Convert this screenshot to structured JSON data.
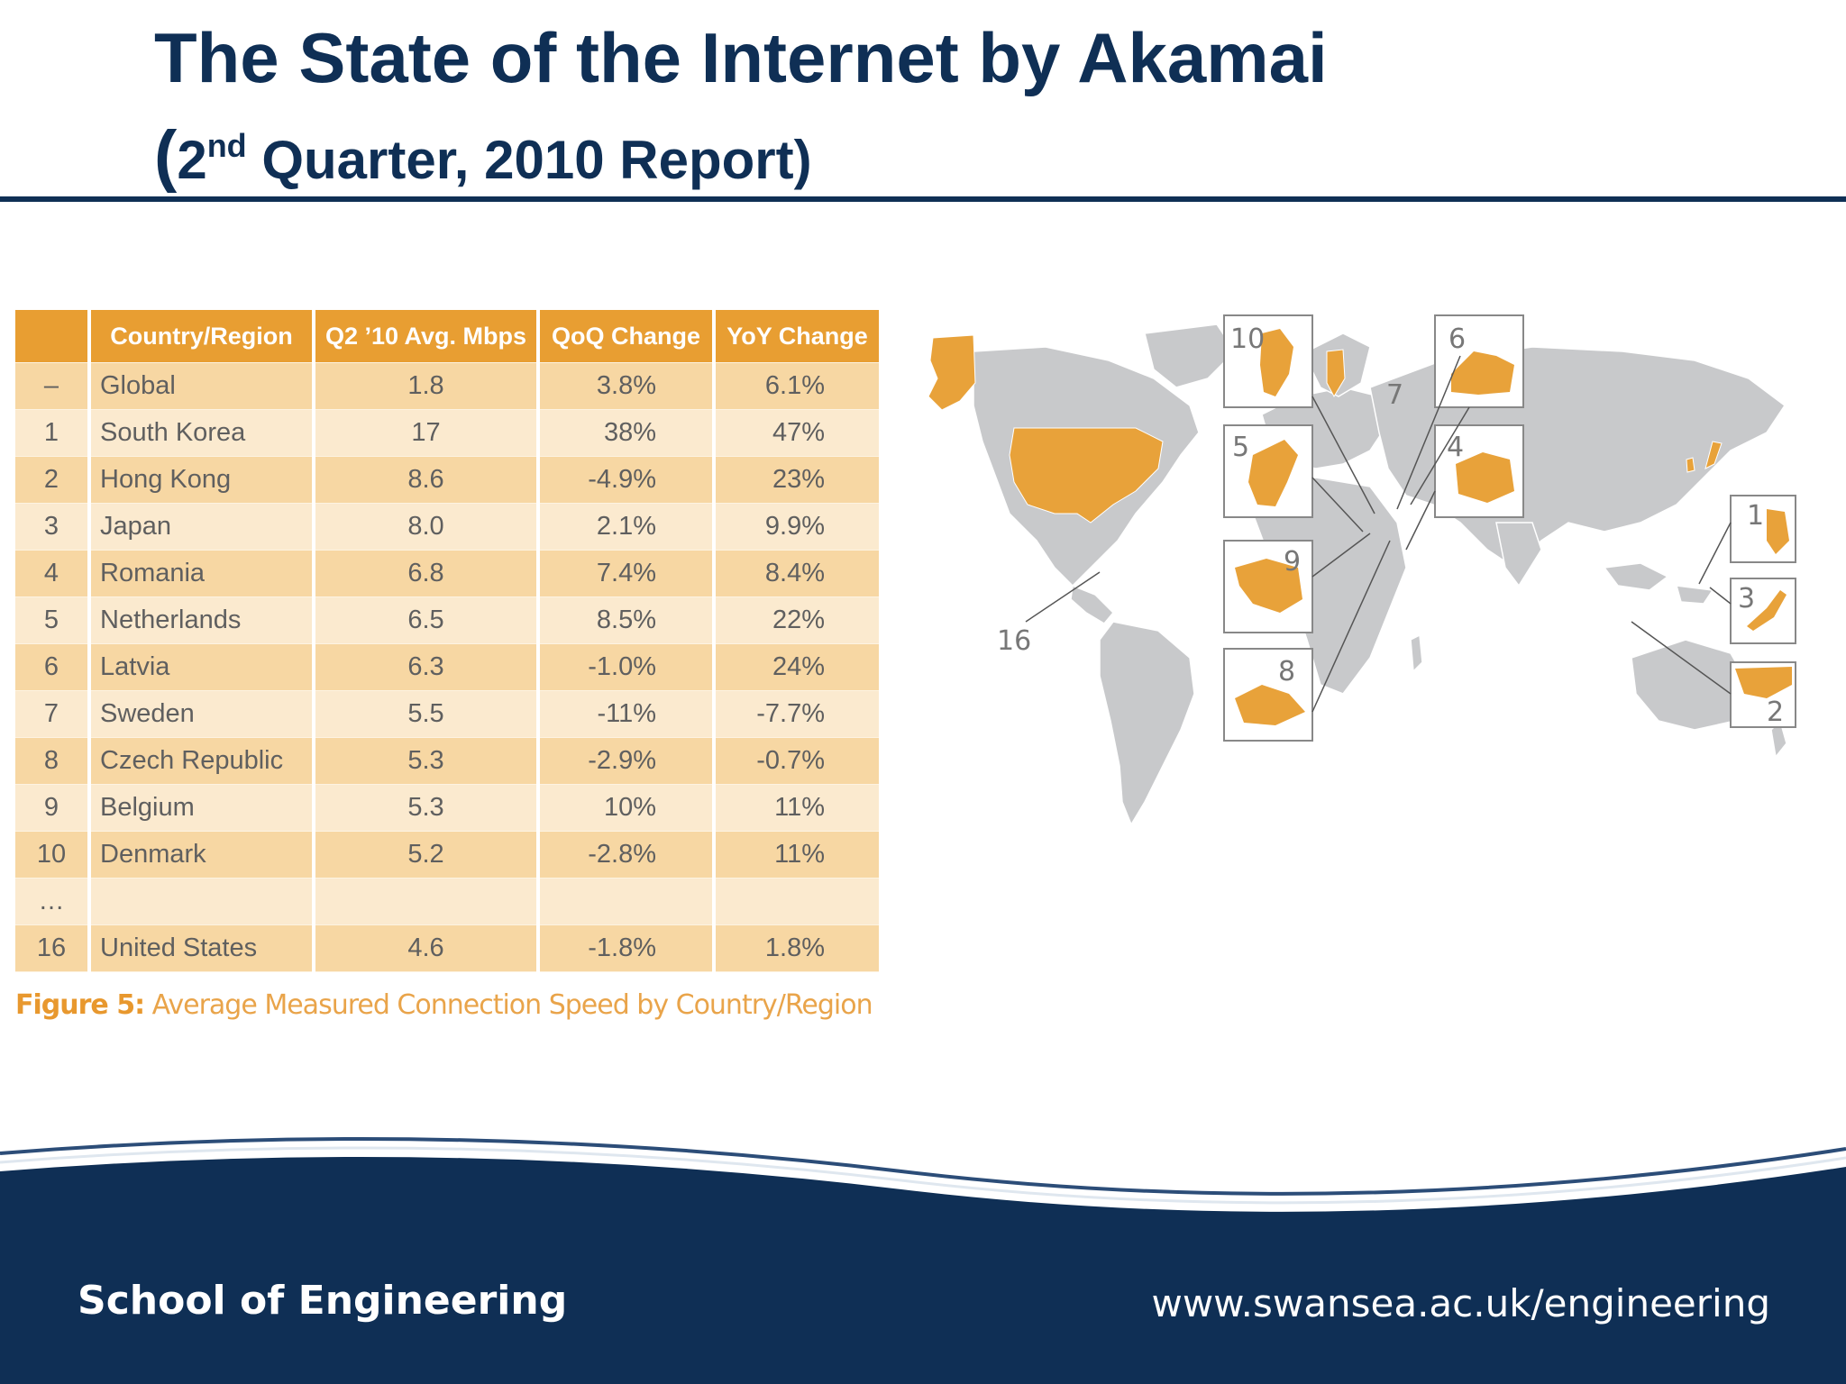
{
  "slide": {
    "title": "The State of the Internet by Akamai",
    "subtitle_open": "(",
    "subtitle_ordinal": "2",
    "subtitle_ordinal_suffix": "nd",
    "subtitle_rest": " Quarter, 2010 Report)"
  },
  "chart_data": {
    "type": "table",
    "title": "",
    "columns": [
      "",
      "Country/Region",
      "Q2 ’10 Avg. Mbps",
      "QoQ Change",
      "YoY Change"
    ],
    "rows": [
      {
        "rank": "–",
        "country": "Global",
        "speed": "1.8",
        "qoq": "3.8%",
        "yoy": "6.1%"
      },
      {
        "rank": "1",
        "country": "South Korea",
        "speed": "17",
        "qoq": "38%",
        "yoy": "47%"
      },
      {
        "rank": "2",
        "country": "Hong Kong",
        "speed": "8.6",
        "qoq": "-4.9%",
        "yoy": "23%"
      },
      {
        "rank": "3",
        "country": "Japan",
        "speed": "8.0",
        "qoq": "2.1%",
        "yoy": "9.9%"
      },
      {
        "rank": "4",
        "country": "Romania",
        "speed": "6.8",
        "qoq": "7.4%",
        "yoy": "8.4%"
      },
      {
        "rank": "5",
        "country": "Netherlands",
        "speed": "6.5",
        "qoq": "8.5%",
        "yoy": "22%"
      },
      {
        "rank": "6",
        "country": "Latvia",
        "speed": "6.3",
        "qoq": "-1.0%",
        "yoy": "24%"
      },
      {
        "rank": "7",
        "country": "Sweden",
        "speed": "5.5",
        "qoq": "-11%",
        "yoy": "-7.7%"
      },
      {
        "rank": "8",
        "country": "Czech Republic",
        "speed": "5.3",
        "qoq": "-2.9%",
        "yoy": "-0.7%"
      },
      {
        "rank": "9",
        "country": "Belgium",
        "speed": "5.3",
        "qoq": "10%",
        "yoy": "11%"
      },
      {
        "rank": "10",
        "country": "Denmark",
        "speed": "5.2",
        "qoq": "-2.8%",
        "yoy": "11%"
      },
      {
        "rank": "…",
        "country": "",
        "speed": "",
        "qoq": "",
        "yoy": ""
      },
      {
        "rank": "16",
        "country": "United States",
        "speed": "4.6",
        "qoq": "-1.8%",
        "yoy": "1.8%"
      }
    ],
    "caption_label": "Figure 5:",
    "caption_text": " Average Measured Connection Speed by Country/Region",
    "map_callouts": [
      "1",
      "2",
      "3",
      "4",
      "5",
      "6",
      "7",
      "8",
      "9",
      "10",
      "16"
    ]
  },
  "colors": {
    "title": "#0f2f55",
    "header": "#e89e32",
    "row_dark": "#f7d7a3",
    "row_light": "#fbeacf",
    "highlight_country": "#e8a23a",
    "map_land": "#c8c9cb",
    "footer_navy": "#0f2f55"
  },
  "footer": {
    "left": "School of Engineering",
    "right": "www.swansea.ac.uk/engineering"
  }
}
